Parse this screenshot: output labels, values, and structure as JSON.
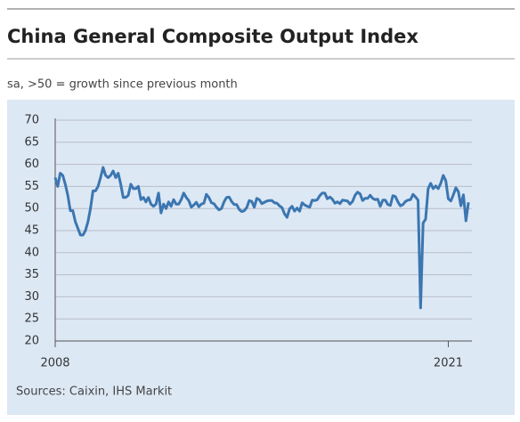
{
  "chart_data": {
    "type": "line",
    "title": "China General Composite Output Index",
    "subtitle": "sa, >50 = growth since previous month",
    "source": "Sources: Caixin, IHS Markit",
    "categories": [
      "2008",
      null,
      null,
      null,
      null,
      null,
      null,
      null,
      null,
      null,
      null,
      null,
      null,
      null,
      null,
      null,
      null,
      null,
      null,
      null,
      null,
      null,
      null,
      null,
      null,
      null,
      null,
      null,
      null,
      null,
      null,
      null,
      null,
      null,
      null,
      null,
      null,
      null,
      null,
      null,
      null,
      null,
      null,
      null,
      null,
      null,
      null,
      null,
      null,
      null,
      null,
      null,
      null,
      null,
      null,
      null,
      null,
      null,
      null,
      null,
      null,
      null,
      null,
      null,
      null,
      null,
      null,
      null,
      null,
      null,
      null,
      null,
      null,
      null,
      null,
      null,
      null,
      null,
      null,
      null,
      null,
      null,
      null,
      null,
      null,
      null,
      null,
      null,
      null,
      null,
      null,
      null,
      null,
      null,
      null,
      null,
      null,
      null,
      null,
      null,
      null,
      null,
      null,
      null,
      null,
      null,
      null,
      null,
      null,
      null,
      null,
      null,
      null,
      null,
      null,
      null,
      null,
      null,
      null,
      null,
      null,
      null,
      null,
      null,
      null,
      null,
      null,
      null,
      null,
      null,
      null,
      null,
      null,
      null,
      null,
      null,
      null,
      null,
      null,
      null,
      null,
      null,
      null,
      null,
      null,
      null,
      null,
      null,
      null,
      null,
      null,
      null,
      null,
      null,
      null,
      null,
      "2021",
      null,
      null,
      null,
      null,
      null,
      null,
      null,
      null
    ],
    "series": [
      {
        "name": "Composite Output Index",
        "color": "#3b76b1",
        "values": [
          57,
          55,
          58,
          57.5,
          55.5,
          53,
          49.5,
          49.5,
          47,
          45.5,
          44,
          44,
          45,
          47,
          50,
          54,
          54,
          55,
          57,
          59.3,
          57.5,
          57,
          57.5,
          58.5,
          57,
          58,
          55.5,
          52.5,
          52.5,
          53,
          55.5,
          54.5,
          54.5,
          55,
          52,
          52.5,
          51.5,
          52.5,
          51,
          50.5,
          51,
          53.5,
          49,
          51,
          50,
          51.5,
          50.5,
          52,
          51,
          51,
          52,
          53.5,
          52.5,
          51.8,
          50.3,
          50.8,
          51.4,
          50.4,
          51,
          51.2,
          53.2,
          52.5,
          51.3,
          51.1,
          50.3,
          49.7,
          50,
          51.5,
          52.5,
          52.6,
          51.6,
          50.9,
          50.9,
          49.8,
          49.3,
          49.5,
          50.2,
          51.8,
          51.6,
          50.3,
          52.3,
          52,
          51.1,
          51.4,
          51.7,
          51.8,
          51.8,
          51.3,
          51.2,
          50.6,
          50.2,
          48.8,
          48,
          49.9,
          50.5,
          49.4,
          50.1,
          49.4,
          51.3,
          50.8,
          50.5,
          50.3,
          51.9,
          51.8,
          52,
          52.9,
          53.5,
          53.5,
          52.2,
          52.6,
          52.1,
          51.2,
          51.5,
          51.1,
          51.9,
          51.8,
          51.7,
          51,
          51.6,
          53,
          53.7,
          53.3,
          51.8,
          52.3,
          52.3,
          53,
          52.3,
          52,
          52.1,
          50.5,
          51.9,
          51.9,
          50.9,
          50.7,
          52.9,
          52.7,
          51.5,
          50.6,
          50.9,
          51.6,
          51.9,
          52,
          53.2,
          52.6,
          51.9,
          27.5,
          46.7,
          47.6,
          54.5,
          55.7,
          54.5,
          55.1,
          54.5,
          55.7,
          57.5,
          56.3,
          52.2,
          51.7,
          53.1,
          54.7,
          53.8,
          50.6,
          53.1,
          47.2,
          51.4
        ]
      }
    ],
    "ylim": [
      20,
      70
    ],
    "yticks": [
      20,
      25,
      30,
      35,
      40,
      45,
      50,
      55,
      60,
      65,
      70
    ],
    "grid": true
  }
}
